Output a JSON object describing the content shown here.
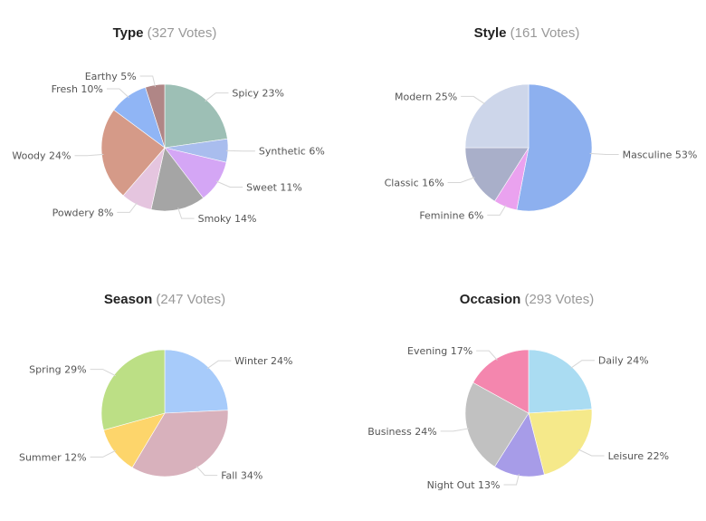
{
  "chart_data": [
    {
      "type": "pie",
      "title": "Type",
      "subtitle": "(327 Votes)",
      "slices": [
        {
          "label": "Spicy 23%",
          "value": 23,
          "color": "#9dbfb5"
        },
        {
          "label": "Synthetic 6%",
          "value": 6,
          "color": "#a9bdee"
        },
        {
          "label": "Sweet 11%",
          "value": 11,
          "color": "#d4a6f5"
        },
        {
          "label": "Smoky 14%",
          "value": 14,
          "color": "#a5a5a5"
        },
        {
          "label": "Powdery 8%",
          "value": 8,
          "color": "#e5c5df"
        },
        {
          "label": "Woody 24%",
          "value": 24,
          "color": "#d59a88"
        },
        {
          "label": "Fresh 10%",
          "value": 10,
          "color": "#90b5f5"
        },
        {
          "label": "Earthy 5%",
          "value": 5,
          "color": "#b08686"
        }
      ]
    },
    {
      "type": "pie",
      "title": "Style",
      "subtitle": "(161 Votes)",
      "slices": [
        {
          "label": "Masculine 53%",
          "value": 53,
          "color": "#8db0ef"
        },
        {
          "label": "Feminine 6%",
          "value": 6,
          "color": "#eaa2ef"
        },
        {
          "label": "Classic 16%",
          "value": 16,
          "color": "#a9afc9"
        },
        {
          "label": "Modern 25%",
          "value": 25,
          "color": "#cdd6ea"
        }
      ]
    },
    {
      "type": "pie",
      "title": "Season",
      "subtitle": "(247 Votes)",
      "slices": [
        {
          "label": "Winter 24%",
          "value": 24,
          "color": "#a7cbfa"
        },
        {
          "label": "Fall 34%",
          "value": 34,
          "color": "#d8b1bc"
        },
        {
          "label": "Summer 12%",
          "value": 12,
          "color": "#fdd56b"
        },
        {
          "label": "Spring 29%",
          "value": 29,
          "color": "#bcdf85"
        }
      ]
    },
    {
      "type": "pie",
      "title": "Occasion",
      "subtitle": "(293 Votes)",
      "slices": [
        {
          "label": "Daily 24%",
          "value": 24,
          "color": "#aadcf2"
        },
        {
          "label": "Leisure 22%",
          "value": 22,
          "color": "#f5e98a"
        },
        {
          "label": "Night Out 13%",
          "value": 13,
          "color": "#a79ce8"
        },
        {
          "label": "Business 24%",
          "value": 24,
          "color": "#c1c1c1"
        },
        {
          "label": "Evening 17%",
          "value": 17,
          "color": "#f486ae"
        }
      ]
    }
  ]
}
